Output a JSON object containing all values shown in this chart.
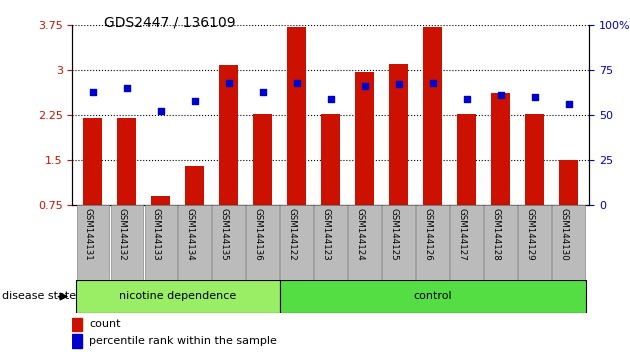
{
  "title": "GDS2447 / 136109",
  "samples": [
    "GSM144131",
    "GSM144132",
    "GSM144133",
    "GSM144134",
    "GSM144135",
    "GSM144136",
    "GSM144122",
    "GSM144123",
    "GSM144124",
    "GSM144125",
    "GSM144126",
    "GSM144127",
    "GSM144128",
    "GSM144129",
    "GSM144130"
  ],
  "bar_values": [
    2.2,
    2.2,
    0.9,
    1.4,
    3.08,
    2.27,
    3.72,
    2.27,
    2.97,
    3.1,
    3.72,
    2.27,
    2.62,
    2.27,
    1.5
  ],
  "dot_values": [
    0.63,
    0.65,
    0.52,
    0.58,
    0.68,
    0.63,
    0.68,
    0.59,
    0.66,
    0.67,
    0.68,
    0.59,
    0.61,
    0.6,
    0.56
  ],
  "bar_color": "#cc1100",
  "dot_color": "#0000cc",
  "ylim_left": [
    0.75,
    3.75
  ],
  "ylim_right": [
    0,
    1.0
  ],
  "yticks_left": [
    0.75,
    1.5,
    2.25,
    3.0,
    3.75
  ],
  "yticks_right": [
    0,
    0.25,
    0.5,
    0.75,
    1.0
  ],
  "ytick_labels_right": [
    "0",
    "25",
    "50",
    "75",
    "100%"
  ],
  "ytick_labels_left": [
    "0.75",
    "1.5",
    "2.25",
    "3",
    "3.75"
  ],
  "group1_label": "nicotine dependence",
  "group2_label": "control",
  "group1_count": 6,
  "group2_count": 9,
  "disease_state_label": "disease state",
  "legend_count_label": "count",
  "legend_pct_label": "percentile rank within the sample",
  "bg_group1": "#99ee66",
  "bg_group2": "#55dd44",
  "bg_xtick": "#bbbbbb",
  "figsize": [
    6.3,
    3.54
  ],
  "dpi": 100
}
